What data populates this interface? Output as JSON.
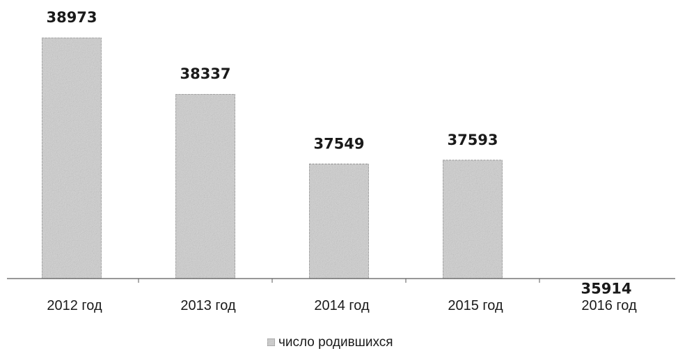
{
  "chart_data": {
    "type": "bar",
    "categories": [
      "2012 год",
      "2013 год",
      "2014 год",
      "2015 год",
      "2016 год"
    ],
    "series": [
      {
        "name": "число родившихся",
        "values": [
          38973,
          38337,
          37549,
          37593,
          35914
        ]
      }
    ],
    "data_labels": [
      "38973",
      "38337",
      "37549",
      "37593",
      "35914"
    ],
    "legend": {
      "position": "bottom",
      "label": "число родившихся"
    },
    "colors": {
      "bar_fill": "#d0d0d0",
      "bar_stroke": "#7a7a7a",
      "axis": "#5a5a5a"
    },
    "grid": false
  }
}
